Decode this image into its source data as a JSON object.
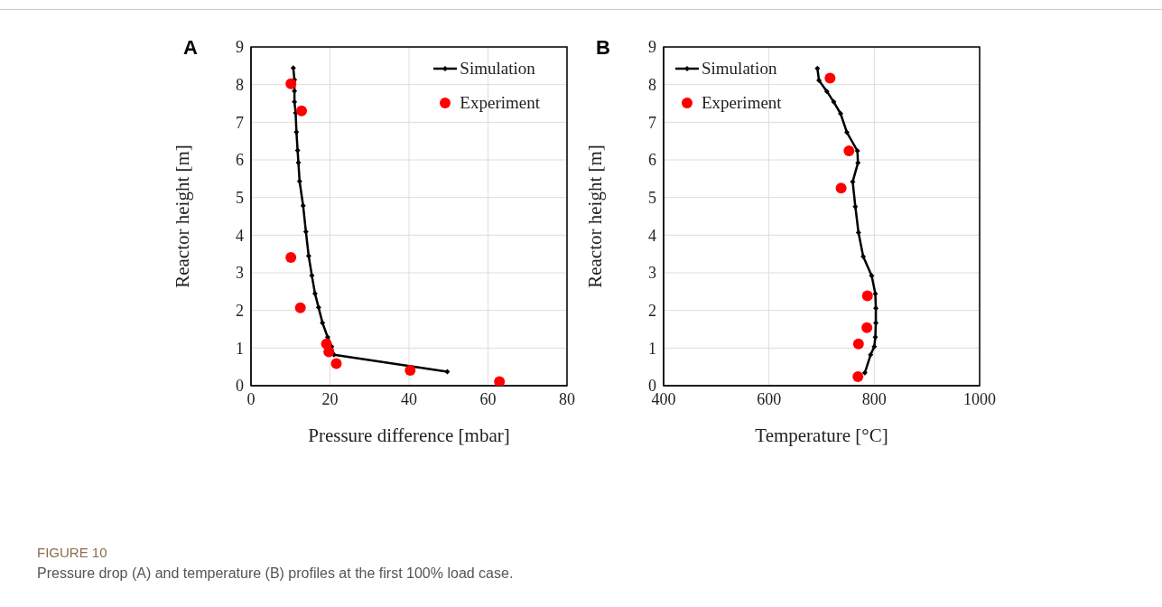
{
  "chart_data": [
    {
      "type": "line",
      "title": "A",
      "xlabel": "Pressure difference [mbar]",
      "ylabel": "Reactor height [m]",
      "xlim": [
        0,
        80
      ],
      "xticks": [
        0,
        20,
        40,
        60,
        80
      ],
      "ylim": [
        0,
        9
      ],
      "yticks": [
        0,
        1,
        2,
        3,
        4,
        5,
        6,
        7,
        8,
        9
      ],
      "grid": true,
      "legend": "top right",
      "line_style": "solid",
      "series": [
        {
          "name": "Simulation",
          "marker": "diamond",
          "color": "#000000",
          "x": [
            10.7,
            11,
            11,
            11,
            11.3,
            11.5,
            11.8,
            12,
            12.3,
            13.2,
            13.9,
            14.6,
            15.4,
            16.2,
            17.1,
            18.1,
            19.4,
            20.4,
            21,
            49.7
          ],
          "values": [
            8.44,
            8.13,
            7.83,
            7.54,
            7.25,
            6.74,
            6.25,
            5.93,
            5.43,
            4.78,
            4.09,
            3.45,
            2.93,
            2.45,
            2.08,
            1.67,
            1.29,
            1.04,
            0.82,
            0.37
          ]
        },
        {
          "name": "Experiment",
          "type": "scatter",
          "marker": "circle",
          "color": "#ff0000",
          "x": [
            10.1,
            12.8,
            10.1,
            12.5,
            19.1,
            19.7,
            21.6,
            40.3,
            62.9
          ],
          "values": [
            8.02,
            7.3,
            3.41,
            2.07,
            1.11,
            0.9,
            0.59,
            0.41,
            0.11
          ]
        }
      ],
      "annotations": [
        "FIGURE 10",
        "Pressure drop (A) and temperature (B) profiles at the first 100% load case."
      ]
    },
    {
      "type": "line",
      "title": "B",
      "xlabel": "Temperature [°C]",
      "ylabel": "Reactor height [m]",
      "xlim": [
        400,
        1000
      ],
      "xticks": [
        400,
        600,
        800,
        1000
      ],
      "ylim": [
        0,
        9
      ],
      "yticks": [
        0,
        1,
        2,
        3,
        4,
        5,
        6,
        7,
        8,
        9
      ],
      "grid": true,
      "legend": "top left",
      "line_style": "solid",
      "series": [
        {
          "name": "Simulation",
          "marker": "diamond",
          "color": "#000000",
          "x": [
            692,
            695,
            710,
            723,
            736,
            748,
            768,
            769,
            759,
            764,
            770,
            779,
            795,
            802,
            803,
            803,
            802,
            800,
            793,
            782
          ],
          "values": [
            8.43,
            8.11,
            7.82,
            7.54,
            7.23,
            6.73,
            6.24,
            5.92,
            5.42,
            4.76,
            4.07,
            3.43,
            2.92,
            2.44,
            2.06,
            1.67,
            1.29,
            1.04,
            0.82,
            0.34
          ]
        },
        {
          "name": "Experiment",
          "type": "scatter",
          "marker": "circle",
          "color": "#ff0000",
          "x": [
            716,
            752,
            737,
            787,
            786,
            770,
            769
          ],
          "values": [
            8.17,
            6.24,
            5.25,
            2.39,
            1.54,
            1.11,
            0.24
          ]
        }
      ]
    }
  ]
}
